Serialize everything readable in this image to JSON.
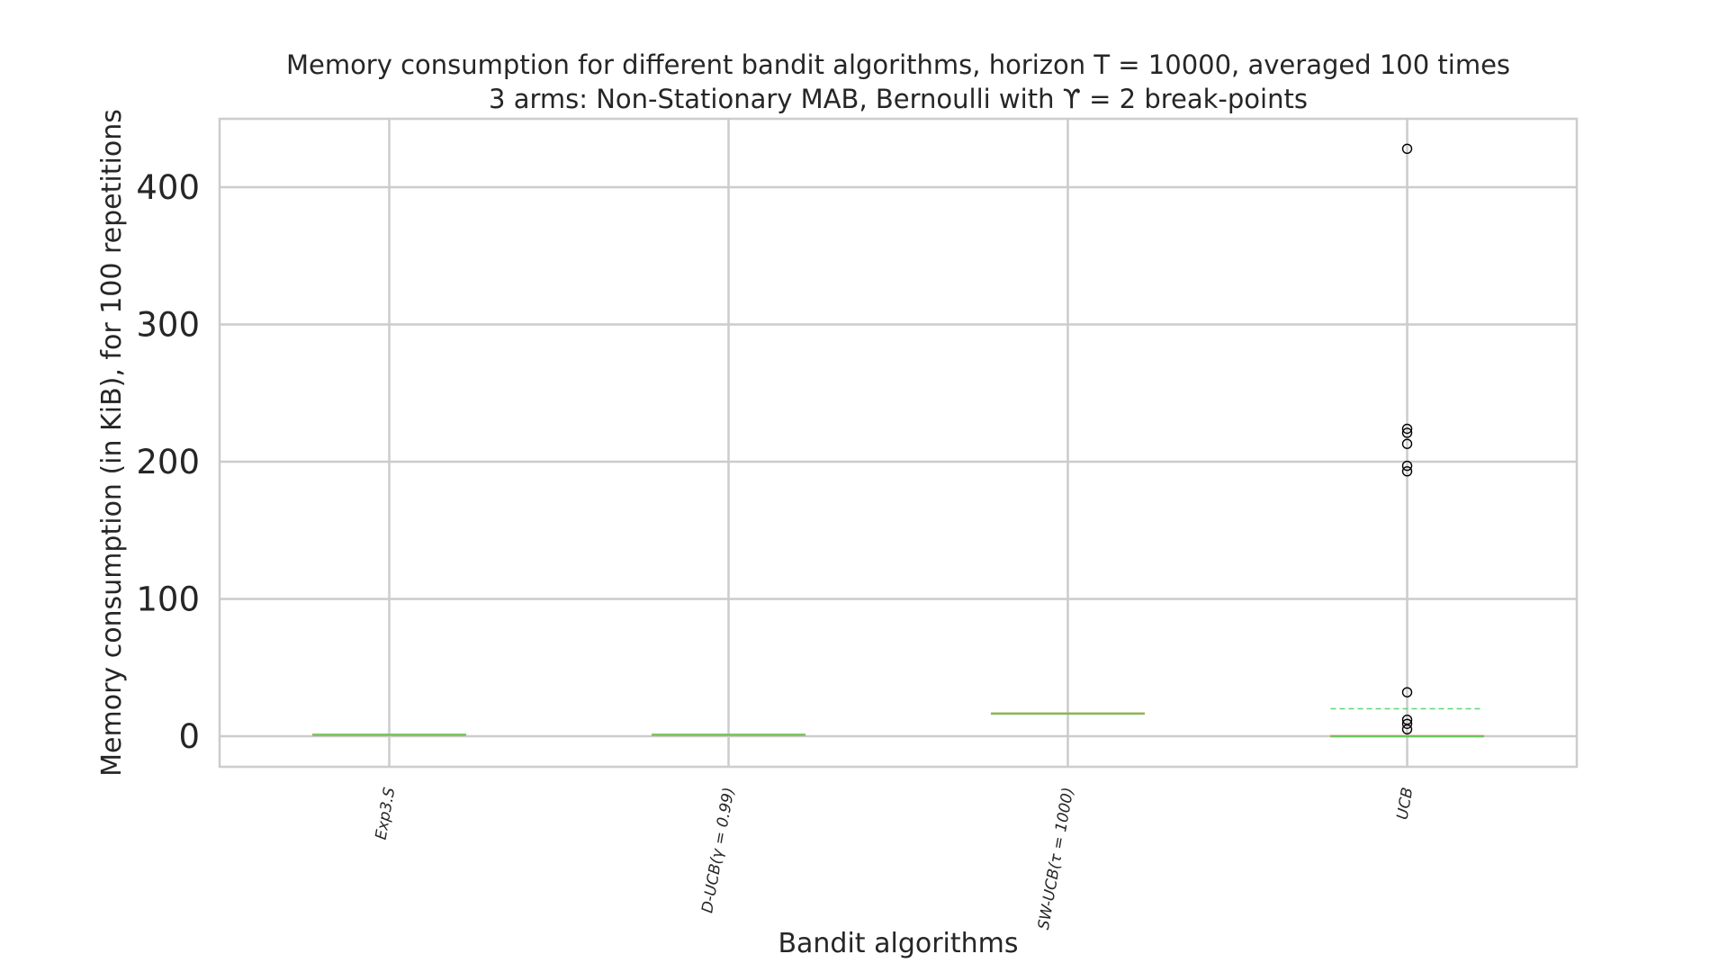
{
  "chart_data": {
    "type": "box",
    "title_line1": "Memory consumption for different bandit algorithms, horizon T = 10000, averaged 100 times",
    "title_line2": "3 arms: Non-Stationary MAB, Bernoulli with ϒ = 2 break-points",
    "xlabel": "Bandit algorithms",
    "ylabel": "Memory consumption (in KiB), for 100 repetitions",
    "ylim": [
      -20,
      450
    ],
    "yticks": [
      0,
      100,
      200,
      300,
      400
    ],
    "grid": true,
    "categories": [
      "Exp3.S",
      "D-UCB(γ = 0.99)",
      "SW-UCB(τ = 1000)",
      "UCB"
    ],
    "boxes": [
      {
        "category": "Exp3.S",
        "q1": 1,
        "median": 1,
        "q3": 1,
        "whisker_low": 1,
        "whisker_high": 1,
        "mean": 1,
        "outliers": []
      },
      {
        "category": "D-UCB(γ = 0.99)",
        "q1": 1,
        "median": 1,
        "q3": 1,
        "whisker_low": 1,
        "whisker_high": 1,
        "mean": 1,
        "outliers": []
      },
      {
        "category": "SW-UCB(τ = 1000)",
        "q1": 16.5,
        "median": 16.5,
        "q3": 16.5,
        "whisker_low": 16.5,
        "whisker_high": 16.5,
        "mean": 16.5,
        "outliers": []
      },
      {
        "category": "UCB",
        "q1": 0,
        "median": 0,
        "q3": 0,
        "whisker_low": 0,
        "whisker_high": 0,
        "mean": 20,
        "outliers": [
          428,
          224,
          221,
          213,
          197,
          193,
          32,
          12,
          9,
          5
        ]
      }
    ],
    "colors": {
      "median": "#6ac55a",
      "mean_line": "#5cd67a",
      "box": "#d9a56a",
      "grid": "#cccccc",
      "spine": "#cccccc"
    }
  }
}
